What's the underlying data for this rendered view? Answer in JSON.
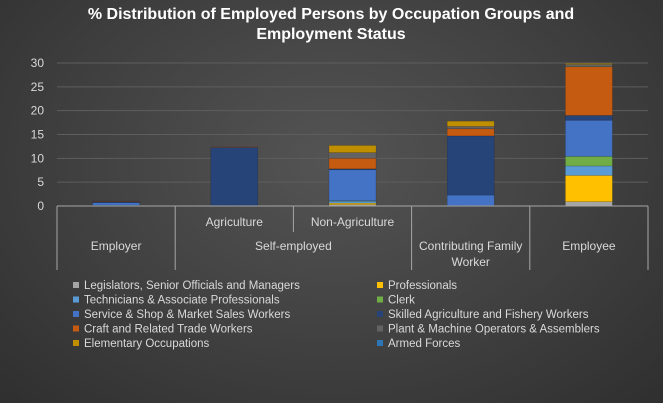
{
  "chart_data": {
    "type": "bar",
    "stacked": true,
    "title_lines": [
      "% Distribution of Employed Persons by Occupation Groups and",
      "Employment Status"
    ],
    "xlabel": "",
    "ylabel": "",
    "ylim": [
      0,
      30
    ],
    "yticks": [
      "0",
      "5",
      "10",
      "15",
      "20",
      "25",
      "30"
    ],
    "grid": true,
    "legend_position": "bottom",
    "groups": [
      {
        "label": "Employer",
        "sublabels": []
      },
      {
        "label": "Self-employed",
        "sublabels": [
          "Agriculture",
          "Non-Agriculture"
        ]
      },
      {
        "label": "Contributing Family Worker",
        "label_lines": [
          "Contributing Family",
          "Worker"
        ],
        "sublabels": []
      },
      {
        "label": "Employee",
        "sublabels": []
      }
    ],
    "categories": [
      "Employer",
      "Agriculture",
      "Non-Agriculture",
      "Contributing Family Worker",
      "Employee"
    ],
    "series": [
      {
        "name": "Legislators, Senior Officials and Managers",
        "color": "#a5a5a5",
        "values": [
          0.1,
          0.0,
          0.3,
          0.0,
          0.9
        ]
      },
      {
        "name": "Professionals",
        "color": "#ffc000",
        "values": [
          0.0,
          0.0,
          0.3,
          0.0,
          5.5
        ]
      },
      {
        "name": "Technicians & Associate Professionals",
        "color": "#5b9bd5",
        "values": [
          0.1,
          0.0,
          0.4,
          0.1,
          2.0
        ]
      },
      {
        "name": "Clerk",
        "color": "#70ad47",
        "values": [
          0.0,
          0.0,
          0.1,
          0.0,
          2.0
        ]
      },
      {
        "name": "Service & Shop & Market Sales Workers",
        "color": "#4472c4",
        "values": [
          0.5,
          0.2,
          6.5,
          2.2,
          7.6
        ]
      },
      {
        "name": "Skilled Agriculture and Fishery Workers",
        "color": "#264478",
        "values": [
          0.2,
          12.1,
          0.2,
          12.4,
          1.0
        ]
      },
      {
        "name": "Craft and Related Trade Workers",
        "color": "#c55a11",
        "values": [
          0.1,
          0.1,
          2.2,
          1.5,
          10.2
        ]
      },
      {
        "name": "Plant & Machine Operators & Assemblers",
        "color": "#636363",
        "values": [
          0.1,
          0.0,
          1.2,
          0.5,
          0.5
        ]
      },
      {
        "name": "Elementary Occupations",
        "color": "#bf8f00",
        "values": [
          0.0,
          0.0,
          1.5,
          1.1,
          0.2
        ]
      },
      {
        "name": "Armed Forces",
        "color": "#2e75b6",
        "values": [
          0.0,
          0.0,
          0.0,
          0.0,
          0.0
        ]
      }
    ]
  }
}
